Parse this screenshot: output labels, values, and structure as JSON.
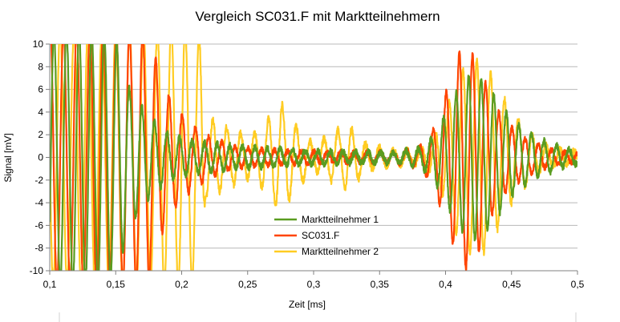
{
  "chart_data": {
    "type": "line",
    "title": "Vergleich SC031.F mit Marktteilnehmern",
    "xlabel": "Zeit [ms]",
    "ylabel": "Signal [mV]",
    "xlim": [
      0.1,
      0.5
    ],
    "ylim": [
      -10,
      10
    ],
    "x_ticks": [
      0.1,
      0.15,
      0.2,
      0.25,
      0.3,
      0.35,
      0.4,
      0.45,
      0.5
    ],
    "x_tick_labels": [
      "0,1",
      "0,15",
      "0,2",
      "0,25",
      "0,3",
      "0,35",
      "0,4",
      "0,45",
      "0,5"
    ],
    "y_ticks": [
      -10,
      -8,
      -6,
      -4,
      -2,
      0,
      2,
      4,
      6,
      8,
      10
    ],
    "y_tick_labels": [
      "-10",
      "-8",
      "-6",
      "-4",
      "-2",
      "0",
      "2",
      "4",
      "6",
      "8",
      "10"
    ],
    "grid": "horizontal",
    "legend_position": "center-left",
    "series": [
      {
        "name": "Marktteilnehmer 2",
        "color": "#FFCC22",
        "zorder": 1,
        "osc_freq_khz": 95,
        "noise_amp": 0.35,
        "envelope": [
          [
            0.1,
            10
          ],
          [
            0.19,
            10
          ],
          [
            0.205,
            10
          ],
          [
            0.215,
            9.5
          ],
          [
            0.218,
            3.2
          ],
          [
            0.23,
            2.6
          ],
          [
            0.25,
            1.6
          ],
          [
            0.26,
            2.2
          ],
          [
            0.275,
            4.3
          ],
          [
            0.29,
            2.0
          ],
          [
            0.3,
            1.0
          ],
          [
            0.31,
            1.6
          ],
          [
            0.325,
            2.6
          ],
          [
            0.34,
            1.0
          ],
          [
            0.36,
            0.5
          ],
          [
            0.38,
            0.6
          ],
          [
            0.39,
            1.4
          ],
          [
            0.4,
            3.5
          ],
          [
            0.41,
            6.5
          ],
          [
            0.42,
            7.6
          ],
          [
            0.43,
            7.4
          ],
          [
            0.44,
            5.5
          ],
          [
            0.45,
            3.6
          ],
          [
            0.46,
            2.3
          ],
          [
            0.47,
            1.2
          ],
          [
            0.48,
            0.7
          ],
          [
            0.5,
            0.4
          ]
        ]
      },
      {
        "name": "SC031.F",
        "color": "#FF4400",
        "zorder": 2,
        "osc_freq_khz": 100,
        "noise_amp": 0.25,
        "envelope": [
          [
            0.1,
            10
          ],
          [
            0.165,
            10
          ],
          [
            0.175,
            9.8
          ],
          [
            0.185,
            6.0
          ],
          [
            0.195,
            4.0
          ],
          [
            0.205,
            2.8
          ],
          [
            0.22,
            1.6
          ],
          [
            0.24,
            0.8
          ],
          [
            0.28,
            0.5
          ],
          [
            0.32,
            0.4
          ],
          [
            0.36,
            0.4
          ],
          [
            0.38,
            0.8
          ],
          [
            0.39,
            2.0
          ],
          [
            0.4,
            5.0
          ],
          [
            0.41,
            8.2
          ],
          [
            0.415,
            8.8
          ],
          [
            0.425,
            7.5
          ],
          [
            0.435,
            4.5
          ],
          [
            0.445,
            2.8
          ],
          [
            0.46,
            1.5
          ],
          [
            0.48,
            0.6
          ],
          [
            0.5,
            0.3
          ]
        ]
      },
      {
        "name": "Marktteilnehmer 1",
        "color": "#5A9C20",
        "zorder": 3,
        "osc_freq_khz": 105,
        "noise_amp": 0.3,
        "envelope": [
          [
            0.1,
            10
          ],
          [
            0.135,
            10
          ],
          [
            0.15,
            9.5
          ],
          [
            0.16,
            5.5
          ],
          [
            0.175,
            3.2
          ],
          [
            0.19,
            1.8
          ],
          [
            0.21,
            1.2
          ],
          [
            0.25,
            0.8
          ],
          [
            0.3,
            0.5
          ],
          [
            0.36,
            0.4
          ],
          [
            0.38,
            0.7
          ],
          [
            0.39,
            1.5
          ],
          [
            0.4,
            3.5
          ],
          [
            0.41,
            5.5
          ],
          [
            0.42,
            6.6
          ],
          [
            0.43,
            6.0
          ],
          [
            0.44,
            4.5
          ],
          [
            0.45,
            3.0
          ],
          [
            0.47,
            1.5
          ],
          [
            0.49,
            0.7
          ],
          [
            0.5,
            0.5
          ]
        ]
      }
    ],
    "legend_order": [
      "Marktteilnehmer 1",
      "SC031.F",
      "Marktteilnehmer 2"
    ]
  }
}
